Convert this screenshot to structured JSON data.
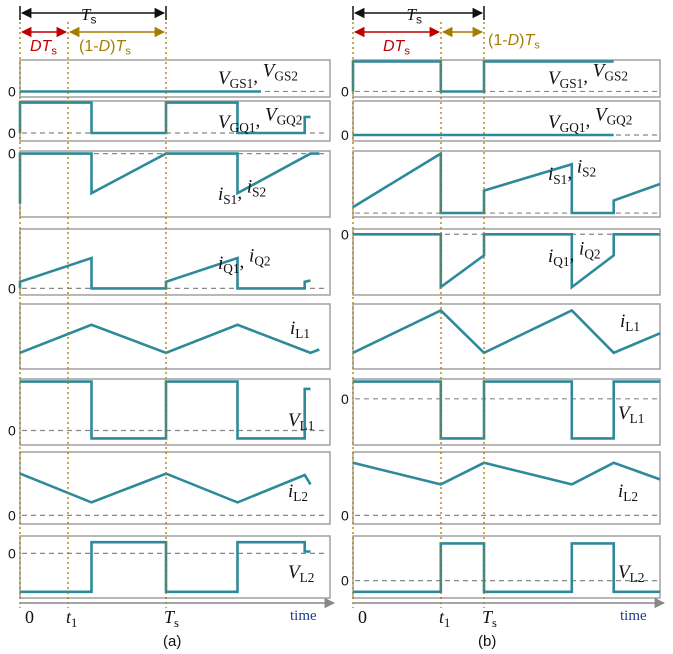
{
  "colors": {
    "waveform": "#2e8a9a",
    "panel_border": "#a0a0a0",
    "zero_dash": "#888888",
    "duty_red": "#c00000",
    "duty_gold": "#a67c00",
    "time_label": "#1f3d8c",
    "text": "#111111"
  },
  "header": {
    "period": {
      "base": "T",
      "sub": "s"
    },
    "duty": {
      "base": "DT",
      "sub": "s"
    },
    "off": {
      "prefix": "(1-",
      "d": "D",
      "mid": ")",
      "base": "T",
      "sub": "s"
    }
  },
  "panel_labels": [
    {
      "parts": [
        {
          "t": "V",
          "i": true
        },
        {
          "t": "GS1",
          "sub": true
        },
        {
          "t": ", "
        },
        {
          "t": "V",
          "i": true
        },
        {
          "t": "GS2",
          "sub": true
        }
      ]
    },
    {
      "parts": [
        {
          "t": "V",
          "i": true
        },
        {
          "t": "GQ1",
          "sub": true
        },
        {
          "t": ", "
        },
        {
          "t": "V",
          "i": true
        },
        {
          "t": "GQ2",
          "sub": true
        }
      ]
    },
    {
      "parts": [
        {
          "t": "i",
          "i": true
        },
        {
          "t": "S1",
          "sub": true
        },
        {
          "t": ", "
        },
        {
          "t": "i",
          "i": true
        },
        {
          "t": "S2",
          "sub": true
        }
      ]
    },
    {
      "parts": [
        {
          "t": "i",
          "i": true
        },
        {
          "t": "Q1",
          "sub": true
        },
        {
          "t": ", "
        },
        {
          "t": "i",
          "i": true
        },
        {
          "t": "Q2",
          "sub": true
        }
      ]
    },
    {
      "parts": [
        {
          "t": "i",
          "i": true
        },
        {
          "t": "L1",
          "sub": true
        }
      ]
    },
    {
      "parts": [
        {
          "t": "V",
          "i": true
        },
        {
          "t": "L1",
          "sub": true
        }
      ]
    },
    {
      "parts": [
        {
          "t": "i",
          "i": true
        },
        {
          "t": "L2",
          "sub": true
        }
      ]
    },
    {
      "parts": [
        {
          "t": "V",
          "i": true
        },
        {
          "t": "L2",
          "sub": true
        }
      ]
    }
  ],
  "zero_label": "0",
  "x_labels": {
    "origin": "0",
    "t1": {
      "base": "t",
      "sub": "1"
    },
    "ts": {
      "base": "T",
      "sub": "s"
    },
    "time": "time"
  },
  "captions": [
    "(a)",
    "(b)"
  ]
}
